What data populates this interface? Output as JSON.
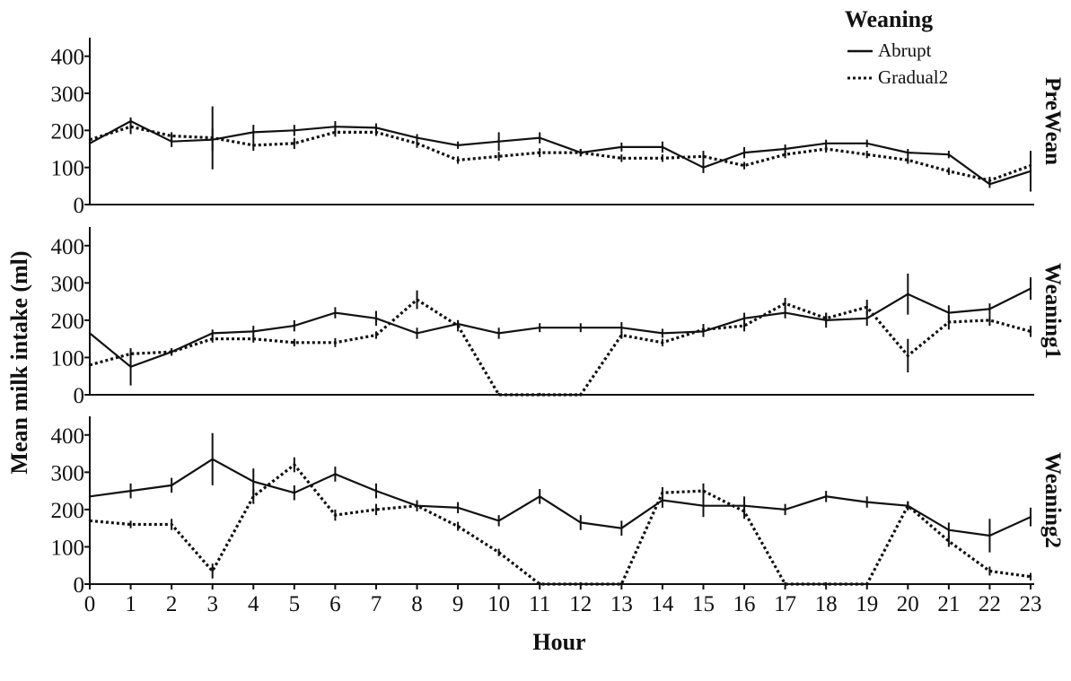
{
  "chart_data": {
    "type": "line",
    "xlabel": "Hour",
    "ylabel": "Mean milk intake (ml)",
    "x": [
      0,
      1,
      2,
      3,
      4,
      5,
      6,
      7,
      8,
      9,
      10,
      11,
      12,
      13,
      14,
      15,
      16,
      17,
      18,
      19,
      20,
      21,
      22,
      23
    ],
    "ylim": [
      0,
      450
    ],
    "yticks": [
      0,
      100,
      200,
      300,
      400
    ],
    "legend": {
      "title": "Weaning",
      "position": "top-right",
      "entries": [
        "Abrupt",
        "Gradual2"
      ]
    },
    "series_styles": {
      "Abrupt": "solid",
      "Gradual2": "dotted"
    },
    "panels": [
      {
        "label": "PreWean",
        "series": [
          {
            "name": "Abrupt",
            "values": [
              165,
              225,
              170,
              175,
              195,
              200,
              210,
              207,
              180,
              160,
              170,
              180,
              140,
              155,
              155,
              100,
              140,
              150,
              165,
              165,
              140,
              135,
              55,
              90
            ],
            "error": [
              5,
              10,
              15,
              30,
              20,
              15,
              15,
              12,
              10,
              10,
              25,
              15,
              10,
              12,
              15,
              15,
              15,
              12,
              10,
              10,
              10,
              10,
              10,
              55
            ]
          },
          {
            "name": "Gradual2",
            "values": [
              175,
              210,
              185,
              180,
              160,
              165,
              195,
              195,
              165,
              120,
              130,
              140,
              140,
              125,
              125,
              130,
              105,
              135,
              150,
              135,
              120,
              90,
              65,
              105
            ],
            "error": [
              10,
              20,
              10,
              85,
              15,
              15,
              12,
              10,
              12,
              10,
              12,
              12,
              10,
              10,
              10,
              15,
              10,
              10,
              10,
              10,
              10,
              10,
              10,
              10
            ]
          }
        ]
      },
      {
        "label": "Weaning1",
        "series": [
          {
            "name": "Abrupt",
            "values": [
              165,
              75,
              115,
              165,
              170,
              185,
              220,
              205,
              165,
              190,
              165,
              180,
              180,
              180,
              165,
              170,
              205,
              220,
              200,
              205,
              270,
              220,
              230,
              285
            ],
            "error": [
              5,
              50,
              10,
              10,
              15,
              15,
              15,
              20,
              15,
              10,
              15,
              12,
              12,
              15,
              12,
              15,
              15,
              15,
              20,
              20,
              55,
              20,
              15,
              30
            ]
          },
          {
            "name": "Gradual2",
            "values": [
              80,
              110,
              115,
              150,
              150,
              140,
              140,
              160,
              255,
              185,
              0,
              0,
              0,
              160,
              140,
              175,
              185,
              245,
              205,
              235,
              105,
              195,
              200,
              170
            ],
            "error": [
              5,
              10,
              10,
              10,
              10,
              10,
              12,
              10,
              25,
              15,
              5,
              5,
              5,
              10,
              10,
              15,
              15,
              15,
              15,
              20,
              45,
              20,
              15,
              15
            ]
          }
        ]
      },
      {
        "label": "Weaning2",
        "series": [
          {
            "name": "Abrupt",
            "values": [
              235,
              250,
              265,
              335,
              275,
              245,
              295,
              250,
              210,
              205,
              170,
              235,
              165,
              150,
              225,
              210,
              210,
              200,
              235,
              220,
              210,
              145,
              130,
              180
            ],
            "error": [
              5,
              20,
              20,
              70,
              35,
              20,
              20,
              20,
              15,
              15,
              15,
              20,
              20,
              20,
              20,
              30,
              25,
              15,
              15,
              15,
              12,
              20,
              45,
              25
            ]
          },
          {
            "name": "Gradual2",
            "values": [
              170,
              160,
              160,
              35,
              235,
              320,
              185,
              200,
              210,
              155,
              85,
              0,
              0,
              0,
              245,
              250,
              195,
              0,
              0,
              0,
              210,
              115,
              35,
              20
            ],
            "error": [
              5,
              10,
              15,
              20,
              20,
              20,
              15,
              15,
              12,
              12,
              10,
              5,
              5,
              5,
              15,
              20,
              20,
              5,
              5,
              5,
              12,
              15,
              12,
              10
            ]
          }
        ]
      }
    ]
  }
}
